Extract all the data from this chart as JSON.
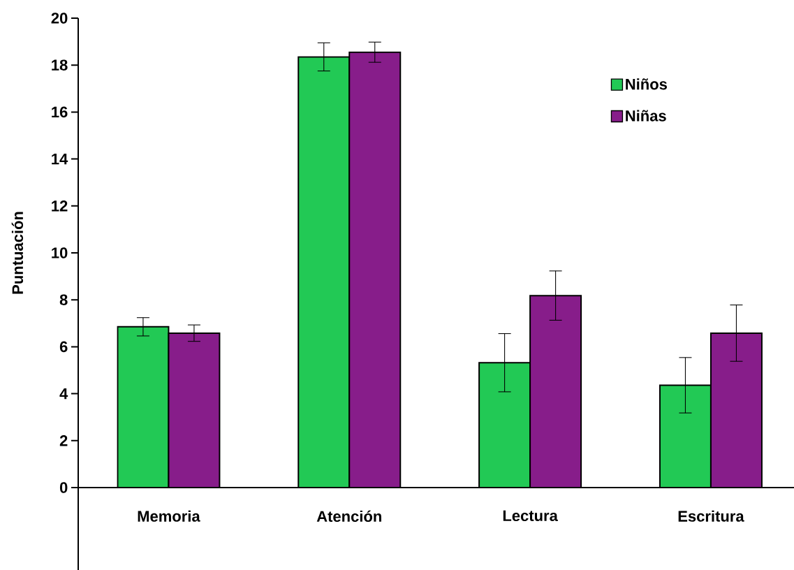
{
  "chart_data": {
    "type": "bar",
    "ylabel": "Puntuación",
    "categories": [
      "Memoria",
      "Atención",
      "Lectura",
      "Escritura"
    ],
    "series": [
      {
        "name": "Niños",
        "color": "#22c955",
        "values": [
          6.85,
          18.35,
          5.32,
          4.36
        ],
        "errors": [
          0.39,
          0.6,
          1.24,
          1.18
        ]
      },
      {
        "name": "Niñas",
        "color": "#871d8a",
        "values": [
          6.58,
          18.55,
          8.18,
          6.58
        ],
        "errors": [
          0.35,
          0.43,
          1.05,
          1.2
        ]
      }
    ],
    "ylim": [
      0,
      20
    ],
    "yticks": [
      0,
      2,
      4,
      6,
      8,
      10,
      12,
      14,
      16,
      18,
      20
    ],
    "grid": false,
    "legend": "top right"
  }
}
